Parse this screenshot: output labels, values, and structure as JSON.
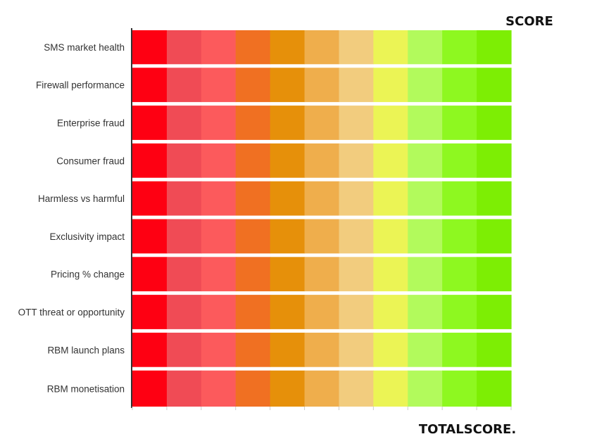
{
  "chart_data": {
    "type": "heatmap",
    "title": "SCORE",
    "footer": "TOTALSCORE.",
    "rows": [
      "SMS market health",
      "Firewall performance",
      "Enterprise fraud",
      "Consumer fraud",
      "Harmless vs harmful",
      "Exclusivity impact",
      "Pricing % change",
      "OTT threat or opportunity",
      "RBM launch plans",
      "RBM monetisation"
    ],
    "scale_steps": 11,
    "scale_colors": [
      "#fe0012",
      "#f04b55",
      "#fc5a5c",
      "#f07022",
      "#e6900a",
      "#efae4c",
      "#f2cc7e",
      "#ebf455",
      "#b2fa5c",
      "#8ef820",
      "#7dee04"
    ]
  }
}
